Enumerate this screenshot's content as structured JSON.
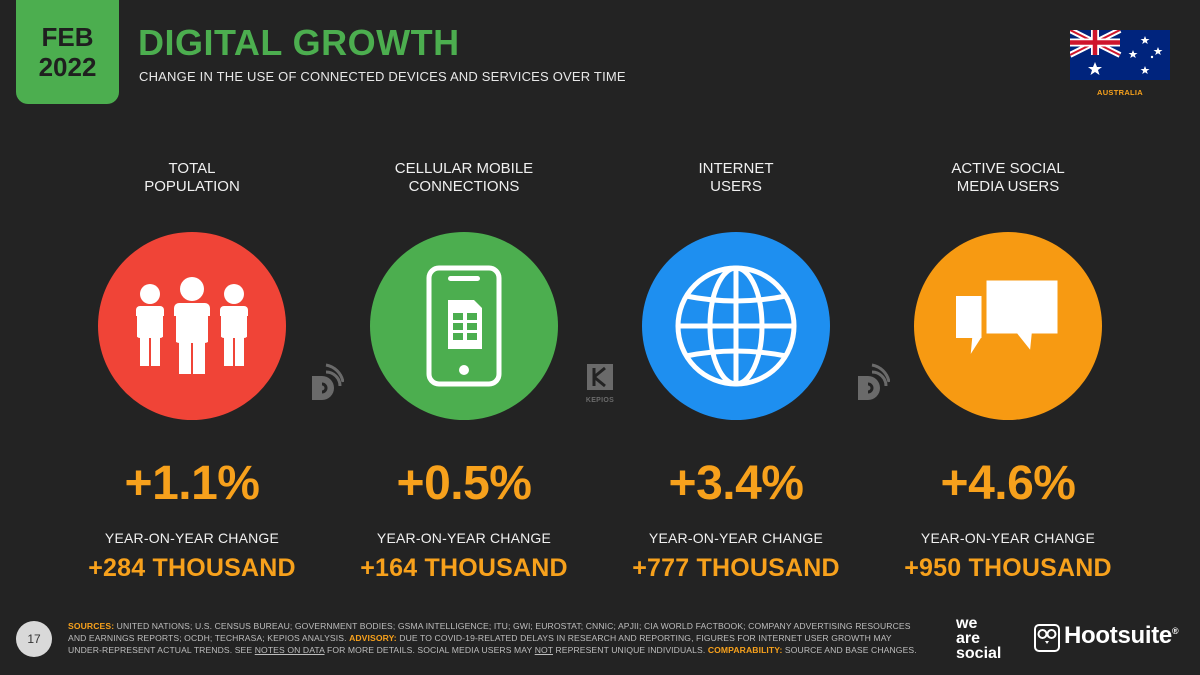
{
  "header": {
    "date_month": "FEB",
    "date_year": "2022",
    "title": "DIGITAL GROWTH",
    "subtitle": "CHANGE IN THE USE OF CONNECTED DEVICES AND SERVICES OVER TIME",
    "country": "AUSTRALIA"
  },
  "stats": [
    {
      "label_line1": "TOTAL",
      "label_line2": "POPULATION",
      "icon": "people-icon",
      "color": "#f04437",
      "percent": "+1.1%",
      "yoy_label": "YEAR-ON-YEAR CHANGE",
      "absolute": "+284 THOUSAND"
    },
    {
      "label_line1": "CELLULAR MOBILE",
      "label_line2": "CONNECTIONS",
      "icon": "mobile-phone-icon",
      "color": "#4cae4f",
      "percent": "+0.5%",
      "yoy_label": "YEAR-ON-YEAR CHANGE",
      "absolute": "+164 THOUSAND"
    },
    {
      "label_line1": "INTERNET",
      "label_line2": "USERS",
      "icon": "globe-icon",
      "color": "#1e8ff0",
      "percent": "+3.4%",
      "yoy_label": "YEAR-ON-YEAR CHANGE",
      "absolute": "+777 THOUSAND"
    },
    {
      "label_line1": "ACTIVE SOCIAL",
      "label_line2": "MEDIA USERS",
      "icon": "chat-bubbles-icon",
      "color": "#f79a12",
      "percent": "+4.6%",
      "yoy_label": "YEAR-ON-YEAR CHANGE",
      "absolute": "+950 THOUSAND"
    }
  ],
  "source_logos": {
    "kepios_label": "KEPIOS"
  },
  "footer": {
    "page_number": "17",
    "sources_label": "SOURCES:",
    "sources_text": "UNITED NATIONS; U.S. CENSUS BUREAU; GOVERNMENT BODIES; GSMA INTELLIGENCE; ITU; GWI; EUROSTAT; CNNIC; APJII; CIA WORLD FACTBOOK; COMPANY ADVERTISING RESOURCES AND EARNINGS REPORTS; OCDH; TECHRASA; KEPIOS ANALYSIS.",
    "advisory_label": "ADVISORY:",
    "advisory_text": "DUE TO COVID-19-RELATED DELAYS IN RESEARCH AND REPORTING, FIGURES FOR INTERNET USER GROWTH MAY UNDER-REPRESENT ACTUAL TRENDS. SEE",
    "notes_link": "NOTES ON DATA",
    "advisory_text2": "FOR MORE DETAILS. SOCIAL MEDIA USERS MAY",
    "not_word": "NOT",
    "advisory_text3": "REPRESENT UNIQUE INDIVIDUALS.",
    "comparability_label": "COMPARABILITY:",
    "comparability_text": "SOURCE AND BASE CHANGES.",
    "brand_we": "we",
    "brand_are": "are",
    "brand_social": "social",
    "brand_hootsuite": "Hootsuite",
    "brand_hootsuite_mark": "®"
  }
}
